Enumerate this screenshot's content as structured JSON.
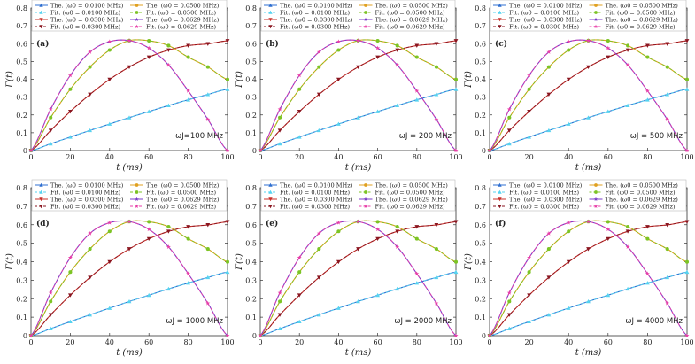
{
  "chart_data": [
    {
      "type": "line",
      "panel_label": "(a)",
      "omega_label": "ωJ=100 MHz",
      "xlabel": "t (ms)",
      "ylabel": "Γ(t)",
      "xlim": [
        0,
        100
      ],
      "ylim": [
        0,
        0.8
      ],
      "xticks": [
        "0",
        "20",
        "40",
        "60",
        "80",
        "100"
      ],
      "yticks": [
        "0",
        "0.1",
        "0.2",
        "0.3",
        "0.4",
        "0.5",
        "0.6",
        "0.7",
        "0.8"
      ],
      "legend": [
        "The. (ω0 = 0.0100 MHz)",
        "Fit. (ω0 = 0.0100 MHz)",
        "The. (ω0 = 0.0300 MHz)",
        "Fit. (ω0 = 0.0300 MHz)",
        "The. (ω0 = 0.0500 MHz)",
        "Fit. (ω0 = 0.0500 MHz)",
        "The. (ω0 = 0.0629 MHz)",
        "Fit. (ω0 = 0.0629 MHz)"
      ],
      "series": [
        {
          "name": "ω0 = 0.0100 MHz",
          "x": [
            0,
            10,
            20,
            30,
            40,
            50,
            60,
            70,
            80,
            90,
            100
          ],
          "values": [
            0,
            0.038,
            0.076,
            0.113,
            0.149,
            0.185,
            0.219,
            0.253,
            0.285,
            0.315,
            0.344
          ]
        },
        {
          "name": "ω0 = 0.0300 MHz",
          "x": [
            0,
            10,
            20,
            30,
            40,
            50,
            60,
            70,
            80,
            90,
            100
          ],
          "values": [
            0,
            0.113,
            0.219,
            0.315,
            0.399,
            0.469,
            0.524,
            0.564,
            0.589,
            0.599,
            0.616
          ]
        },
        {
          "name": "ω0 = 0.0500 MHz",
          "x": [
            0,
            10,
            20,
            30,
            40,
            50,
            60,
            70,
            80,
            90,
            100
          ],
          "values": [
            0,
            0.185,
            0.344,
            0.469,
            0.564,
            0.617,
            0.616,
            0.589,
            0.524,
            0.469,
            0.399
          ]
        },
        {
          "name": "ω0 = 0.0629 MHz",
          "x": [
            0,
            10,
            20,
            30,
            40,
            50,
            60,
            70,
            80,
            90,
            100
          ],
          "values": [
            0,
            0.232,
            0.422,
            0.553,
            0.611,
            0.617,
            0.575,
            0.48,
            0.335,
            0.175,
            0.0
          ]
        }
      ]
    },
    {
      "type": "line",
      "panel_label": "(b)",
      "omega_label": "ωJ = 200 MHz",
      "xlabel": "t (ms)",
      "ylabel": "Γ(t)",
      "xlim": [
        0,
        100
      ],
      "ylim": [
        0,
        0.8
      ],
      "xticks": [
        "0",
        "20",
        "40",
        "60",
        "80",
        "100"
      ],
      "yticks": [
        "0",
        "0.1",
        "0.2",
        "0.3",
        "0.4",
        "0.5",
        "0.6",
        "0.7",
        "0.8"
      ],
      "legend": [
        "The. (ω0 = 0.0100 MHz)",
        "Fit. (ω0 = 0.0100 MHz)",
        "The. (ω0 = 0.0300 MHz)",
        "Fit. (ω0 = 0.0300 MHz)",
        "The. (ω0 = 0.0500 MHz)",
        "Fit. (ω0 = 0.0500 MHz)",
        "The. (ω0 = 0.0629 MHz)",
        "Fit. (ω0 = 0.0629 MHz)"
      ],
      "series": [
        {
          "name": "ω0 = 0.0100 MHz",
          "x": [
            0,
            10,
            20,
            30,
            40,
            50,
            60,
            70,
            80,
            90,
            100
          ],
          "values": [
            0,
            0.038,
            0.076,
            0.113,
            0.149,
            0.185,
            0.219,
            0.253,
            0.285,
            0.315,
            0.344
          ]
        },
        {
          "name": "ω0 = 0.0300 MHz",
          "x": [
            0,
            10,
            20,
            30,
            40,
            50,
            60,
            70,
            80,
            90,
            100
          ],
          "values": [
            0,
            0.113,
            0.219,
            0.315,
            0.399,
            0.469,
            0.524,
            0.564,
            0.589,
            0.599,
            0.616
          ]
        },
        {
          "name": "ω0 = 0.0500 MHz",
          "x": [
            0,
            10,
            20,
            30,
            40,
            50,
            60,
            70,
            80,
            90,
            100
          ],
          "values": [
            0,
            0.185,
            0.344,
            0.469,
            0.564,
            0.617,
            0.616,
            0.589,
            0.524,
            0.469,
            0.399
          ]
        },
        {
          "name": "ω0 = 0.0629 MHz",
          "x": [
            0,
            10,
            20,
            30,
            40,
            50,
            60,
            70,
            80,
            90,
            100
          ],
          "values": [
            0,
            0.232,
            0.422,
            0.553,
            0.611,
            0.617,
            0.575,
            0.48,
            0.335,
            0.175,
            0.0
          ]
        }
      ]
    },
    {
      "type": "line",
      "panel_label": "(c)",
      "omega_label": "ωJ = 500 MHz",
      "xlabel": "t (ms)",
      "ylabel": "Γ(t)",
      "xlim": [
        0,
        100
      ],
      "ylim": [
        0,
        0.8
      ],
      "xticks": [
        "0",
        "20",
        "40",
        "60",
        "80",
        "100"
      ],
      "yticks": [
        "0",
        "0.1",
        "0.2",
        "0.3",
        "0.4",
        "0.5",
        "0.6",
        "0.7",
        "0.8"
      ],
      "legend": [
        "The. (ω0 = 0.0100 MHz)",
        "Fit. (ω0 = 0.0100 MHz)",
        "The. (ω0 = 0.0300 MHz)",
        "Fit. (ω0 = 0.0300 MHz)",
        "The. (ω0 = 0.0500 MHz)",
        "Fit. (ω0 = 0.0500 MHz)",
        "The. (ω0 = 0.0629 MHz)",
        "Fit. (ω0 = 0.0629 MHz)"
      ],
      "series": [
        {
          "name": "ω0 = 0.0100 MHz",
          "x": [
            0,
            10,
            20,
            30,
            40,
            50,
            60,
            70,
            80,
            90,
            100
          ],
          "values": [
            0,
            0.038,
            0.076,
            0.113,
            0.149,
            0.185,
            0.219,
            0.253,
            0.285,
            0.315,
            0.344
          ]
        },
        {
          "name": "ω0 = 0.0300 MHz",
          "x": [
            0,
            10,
            20,
            30,
            40,
            50,
            60,
            70,
            80,
            90,
            100
          ],
          "values": [
            0,
            0.113,
            0.219,
            0.315,
            0.399,
            0.469,
            0.524,
            0.564,
            0.589,
            0.599,
            0.616
          ]
        },
        {
          "name": "ω0 = 0.0500 MHz",
          "x": [
            0,
            10,
            20,
            30,
            40,
            50,
            60,
            70,
            80,
            90,
            100
          ],
          "values": [
            0,
            0.185,
            0.344,
            0.469,
            0.564,
            0.617,
            0.616,
            0.589,
            0.524,
            0.469,
            0.399
          ]
        },
        {
          "name": "ω0 = 0.0629 MHz",
          "x": [
            0,
            10,
            20,
            30,
            40,
            50,
            60,
            70,
            80,
            90,
            100
          ],
          "values": [
            0,
            0.232,
            0.422,
            0.553,
            0.611,
            0.617,
            0.575,
            0.48,
            0.335,
            0.175,
            0.0
          ]
        }
      ]
    },
    {
      "type": "line",
      "panel_label": "(d)",
      "omega_label": "ωJ = 1000 MHz",
      "xlabel": "t (ms)",
      "ylabel": "Γ(t)",
      "xlim": [
        0,
        100
      ],
      "ylim": [
        0,
        0.8
      ],
      "xticks": [
        "0",
        "20",
        "40",
        "60",
        "80",
        "100"
      ],
      "yticks": [
        "0",
        "0.1",
        "0.2",
        "0.3",
        "0.4",
        "0.5",
        "0.6",
        "0.7",
        "0.8"
      ],
      "legend": [
        "The. (ω0 = 0.0100 MHz)",
        "Fit. (ω0 = 0.0100 MHz)",
        "The. (ω0 = 0.0300 MHz)",
        "Fit. (ω0 = 0.0300 MHz)",
        "The. (ω0 = 0.0500 MHz)",
        "Fit. (ω0 = 0.0500 MHz)",
        "The. (ω0 = 0.0629 MHz)",
        "Fit. (ω0 = 0.0629 MHz)"
      ],
      "series": [
        {
          "name": "ω0 = 0.0100 MHz",
          "x": [
            0,
            10,
            20,
            30,
            40,
            50,
            60,
            70,
            80,
            90,
            100
          ],
          "values": [
            0,
            0.038,
            0.076,
            0.113,
            0.149,
            0.185,
            0.219,
            0.253,
            0.285,
            0.315,
            0.344
          ]
        },
        {
          "name": "ω0 = 0.0300 MHz",
          "x": [
            0,
            10,
            20,
            30,
            40,
            50,
            60,
            70,
            80,
            90,
            100
          ],
          "values": [
            0,
            0.113,
            0.219,
            0.315,
            0.399,
            0.469,
            0.524,
            0.564,
            0.589,
            0.599,
            0.616
          ]
        },
        {
          "name": "ω0 = 0.0500 MHz",
          "x": [
            0,
            10,
            20,
            30,
            40,
            50,
            60,
            70,
            80,
            90,
            100
          ],
          "values": [
            0,
            0.185,
            0.344,
            0.469,
            0.564,
            0.617,
            0.616,
            0.589,
            0.524,
            0.469,
            0.399
          ]
        },
        {
          "name": "ω0 = 0.0629 MHz",
          "x": [
            0,
            10,
            20,
            30,
            40,
            50,
            60,
            70,
            80,
            90,
            100
          ],
          "values": [
            0,
            0.232,
            0.422,
            0.553,
            0.611,
            0.617,
            0.575,
            0.48,
            0.335,
            0.175,
            0.0
          ]
        }
      ]
    },
    {
      "type": "line",
      "panel_label": "(e)",
      "omega_label": "ωJ = 2000 MHz",
      "xlabel": "t (ms)",
      "ylabel": "Γ(t)",
      "xlim": [
        0,
        100
      ],
      "ylim": [
        0,
        0.8
      ],
      "xticks": [
        "0",
        "20",
        "40",
        "60",
        "80",
        "100"
      ],
      "yticks": [
        "0",
        "0.1",
        "0.2",
        "0.3",
        "0.4",
        "0.5",
        "0.6",
        "0.7",
        "0.8"
      ],
      "legend": [
        "The. (ω0 = 0.0100 MHz)",
        "Fit. (ω0 = 0.0100 MHz)",
        "The. (ω0 = 0.0300 MHz)",
        "Fit. (ω0 = 0.0300 MHz)",
        "The. (ω0 = 0.0500 MHz)",
        "Fit. (ω0 = 0.0500 MHz)",
        "The. (ω0 = 0.0629 MHz)",
        "Fit. (ω0 = 0.0629 MHz)"
      ],
      "series": [
        {
          "name": "ω0 = 0.0100 MHz",
          "x": [
            0,
            10,
            20,
            30,
            40,
            50,
            60,
            70,
            80,
            90,
            100
          ],
          "values": [
            0,
            0.038,
            0.076,
            0.113,
            0.149,
            0.185,
            0.219,
            0.253,
            0.285,
            0.315,
            0.344
          ]
        },
        {
          "name": "ω0 = 0.0300 MHz",
          "x": [
            0,
            10,
            20,
            30,
            40,
            50,
            60,
            70,
            80,
            90,
            100
          ],
          "values": [
            0,
            0.113,
            0.219,
            0.315,
            0.399,
            0.469,
            0.524,
            0.564,
            0.589,
            0.599,
            0.616
          ]
        },
        {
          "name": "ω0 = 0.0500 MHz",
          "x": [
            0,
            10,
            20,
            30,
            40,
            50,
            60,
            70,
            80,
            90,
            100
          ],
          "values": [
            0,
            0.185,
            0.344,
            0.469,
            0.564,
            0.617,
            0.616,
            0.589,
            0.524,
            0.469,
            0.399
          ]
        },
        {
          "name": "ω0 = 0.0629 MHz",
          "x": [
            0,
            10,
            20,
            30,
            40,
            50,
            60,
            70,
            80,
            90,
            100
          ],
          "values": [
            0,
            0.232,
            0.422,
            0.553,
            0.611,
            0.617,
            0.575,
            0.48,
            0.335,
            0.175,
            0.0
          ]
        }
      ]
    },
    {
      "type": "line",
      "panel_label": "(f)",
      "omega_label": "ωJ = 4000 MHz",
      "xlabel": "t (ms)",
      "ylabel": "Γ(t)",
      "xlim": [
        0,
        100
      ],
      "ylim": [
        0,
        0.8
      ],
      "xticks": [
        "0",
        "20",
        "40",
        "60",
        "80",
        "100"
      ],
      "yticks": [
        "0",
        "0.1",
        "0.2",
        "0.3",
        "0.4",
        "0.5",
        "0.6",
        "0.7",
        "0.8"
      ],
      "legend": [
        "The. (ω0 = 0.0100 MHz)",
        "Fit. (ω0 = 0.0100 MHz)",
        "The. (ω0 = 0.0300 MHz)",
        "Fit. (ω0 = 0.0300 MHz)",
        "The. (ω0 = 0.0500 MHz)",
        "Fit. (ω0 = 0.0500 MHz)",
        "The. (ω0 = 0.0629 MHz)",
        "Fit. (ω0 = 0.0629 MHz)"
      ],
      "series": [
        {
          "name": "ω0 = 0.0100 MHz",
          "x": [
            0,
            10,
            20,
            30,
            40,
            50,
            60,
            70,
            80,
            90,
            100
          ],
          "values": [
            0,
            0.038,
            0.076,
            0.113,
            0.149,
            0.185,
            0.219,
            0.253,
            0.285,
            0.315,
            0.344
          ]
        },
        {
          "name": "ω0 = 0.0300 MHz",
          "x": [
            0,
            10,
            20,
            30,
            40,
            50,
            60,
            70,
            80,
            90,
            100
          ],
          "values": [
            0,
            0.113,
            0.219,
            0.315,
            0.399,
            0.469,
            0.524,
            0.564,
            0.589,
            0.599,
            0.616
          ]
        },
        {
          "name": "ω0 = 0.0500 MHz",
          "x": [
            0,
            10,
            20,
            30,
            40,
            50,
            60,
            70,
            80,
            90,
            100
          ],
          "values": [
            0,
            0.185,
            0.344,
            0.469,
            0.564,
            0.617,
            0.616,
            0.589,
            0.524,
            0.469,
            0.399
          ]
        },
        {
          "name": "ω0 = 0.0629 MHz",
          "x": [
            0,
            10,
            20,
            30,
            40,
            50,
            60,
            70,
            80,
            90,
            100
          ],
          "values": [
            0,
            0.232,
            0.422,
            0.553,
            0.611,
            0.617,
            0.575,
            0.48,
            0.335,
            0.175,
            0.0
          ]
        }
      ]
    }
  ],
  "colors": {
    "the_0100": "#2f6fd0",
    "fit_0100": "#56d3f0",
    "the_0300": "#c8302a",
    "fit_0300": "#8a1620",
    "the_0500": "#e0a020",
    "fit_0500": "#7cc424",
    "the_0629": "#7a3cc8",
    "fit_0629": "#e83ea8",
    "axis": "#333333"
  }
}
